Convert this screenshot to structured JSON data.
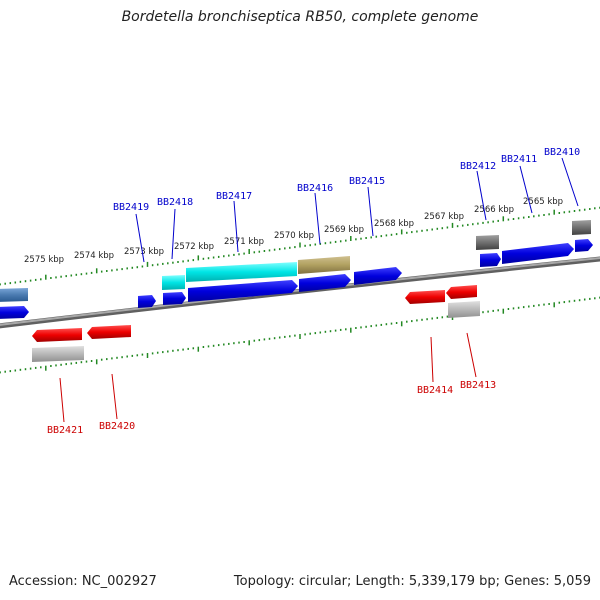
{
  "title": "Bordetella bronchiseptica RB50, complete genome",
  "accession": "Accession: NC_002927",
  "meta": "Topology: circular; Length: 5,339,179 bp; Genes: 5,059",
  "colors": {
    "forward_label": "#0000cc",
    "reverse_label": "#cc0000",
    "blue_gene": "#0000dd",
    "red_gene": "#ee0000",
    "cyan_gene": "#00e5e5",
    "olive_gene": "#b0a060",
    "gray_gene": "#707070",
    "light_gray_gene": "#b8b8b8",
    "steel_gene": "#4a7ab0",
    "backbone": "#808080",
    "tick": "#228822"
  },
  "kbp_ticks": [
    "2575 kbp",
    "2574 kbp",
    "2573 kbp",
    "2572 kbp",
    "2571 kbp",
    "2570 kbp",
    "2569 kbp",
    "2568 kbp",
    "2567 kbp",
    "2566 kbp",
    "2565 kbp"
  ],
  "forward_labels": [
    "BB2419",
    "BB2418",
    "BB2417",
    "BB2416",
    "BB2415",
    "BB2412",
    "BB2411",
    "BB2410"
  ],
  "reverse_labels": [
    "BB2421",
    "BB2420",
    "BB2414",
    "BB2413"
  ]
}
